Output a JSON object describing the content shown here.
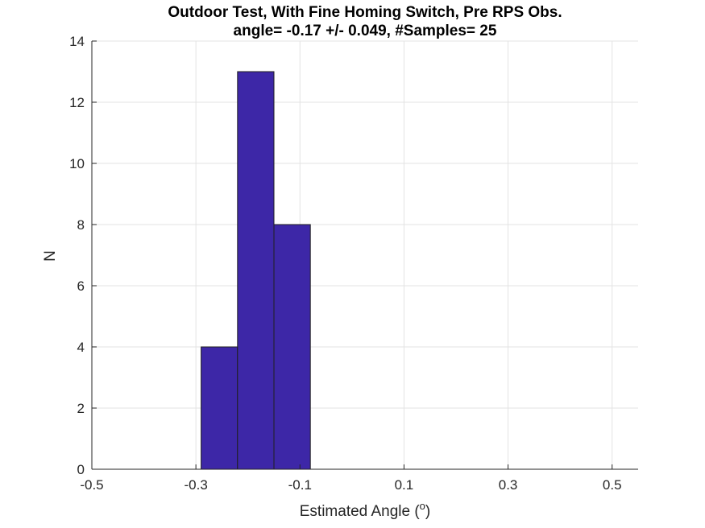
{
  "chart_data": {
    "type": "bar",
    "title": "Outdoor Test, With Fine Homing Switch, Pre RPS Obs.",
    "subtitle": "angle= -0.17 +/- 0.049, #Samples= 25",
    "xlabel": "Estimated Angle (",
    "xlabel_superscript": "o",
    "xlabel_suffix": ")",
    "ylabel": "N",
    "xlim": [
      -0.5,
      0.55
    ],
    "ylim": [
      0,
      14
    ],
    "x_ticks": [
      -0.5,
      -0.3,
      -0.1,
      0.1,
      0.3,
      0.5
    ],
    "x_tick_labels": [
      "-0.5",
      "-0.3",
      "-0.1",
      "0.1",
      "0.3",
      "0.5"
    ],
    "y_ticks": [
      0,
      2,
      4,
      6,
      8,
      10,
      12,
      14
    ],
    "y_tick_labels": [
      "0",
      "2",
      "4",
      "6",
      "8",
      "10",
      "12",
      "14"
    ],
    "grid": true,
    "bins": [
      {
        "x0": -0.29,
        "x1": -0.22,
        "value": 4
      },
      {
        "x0": -0.22,
        "x1": -0.15,
        "value": 13
      },
      {
        "x0": -0.15,
        "x1": -0.08,
        "value": 8
      }
    ],
    "colors": {
      "bar": "#3d27a7",
      "bar_edge": "#1f1f1f",
      "grid": "#e3e3e3",
      "axis": "#262626"
    }
  }
}
